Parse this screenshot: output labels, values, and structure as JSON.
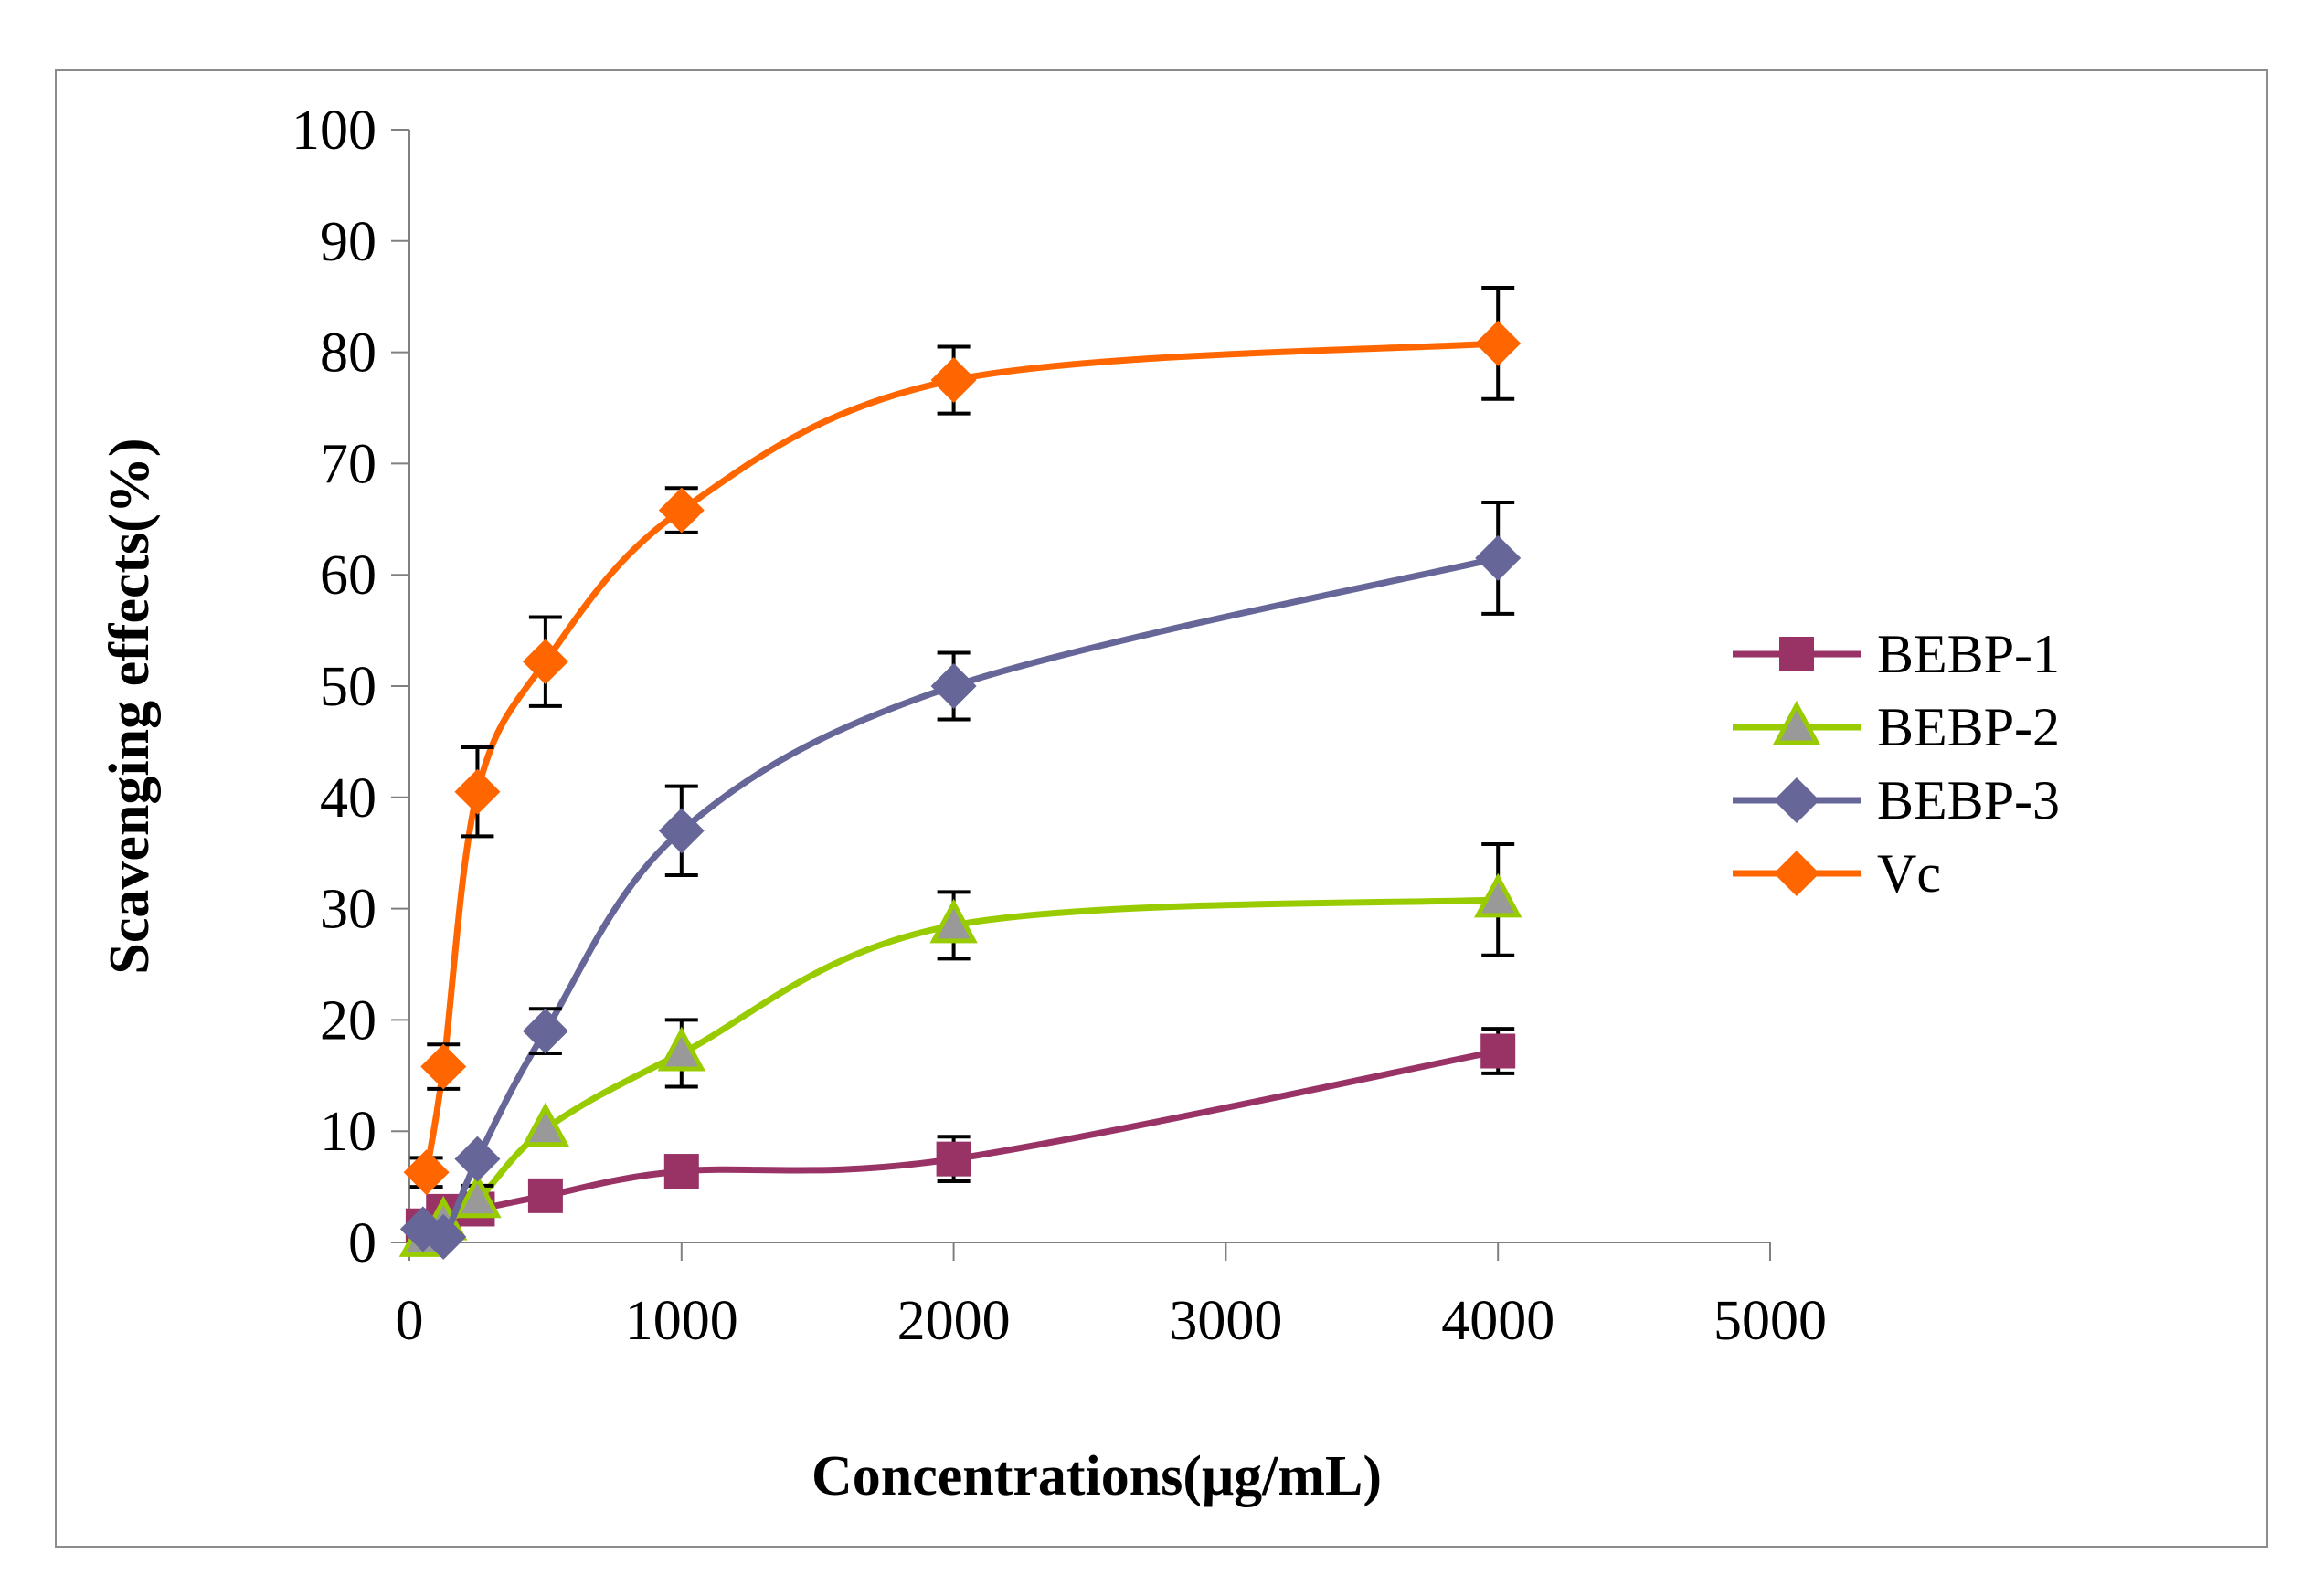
{
  "chart_data": {
    "type": "line",
    "title": "",
    "xlabel": "Concentrations(μg/mL)",
    "ylabel": "Scavenging effects(%)",
    "xlim": [
      0,
      5000
    ],
    "ylim": [
      0,
      100
    ],
    "xticks": [
      0,
      1000,
      2000,
      3000,
      4000,
      5000
    ],
    "yticks": [
      0,
      10,
      20,
      30,
      40,
      50,
      60,
      70,
      80,
      90,
      100
    ],
    "grid": false,
    "legend_position": "right",
    "series": [
      {
        "name": "BEBP-1",
        "color": "#993366",
        "marker": "square",
        "points": [
          {
            "x": 50,
            "y": 1.5,
            "err": null
          },
          {
            "x": 125,
            "y": 2.8,
            "err": null
          },
          {
            "x": 250,
            "y": 3.0,
            "err": null
          },
          {
            "x": 500,
            "y": 4.2,
            "err": null
          },
          {
            "x": 1000,
            "y": 6.4,
            "err": null
          },
          {
            "x": 2000,
            "y": 7.5,
            "err": 2.0
          },
          {
            "x": 4000,
            "y": 17.2,
            "err": 2.0
          }
        ]
      },
      {
        "name": "BEBP-2",
        "color": "#99CC00",
        "marker": "triangle",
        "points": [
          {
            "x": 50,
            "y": 0.3,
            "err": null
          },
          {
            "x": 125,
            "y": 1.8,
            "err": null
          },
          {
            "x": 250,
            "y": 3.8,
            "err": 1.3
          },
          {
            "x": 500,
            "y": 10.2,
            "err": null
          },
          {
            "x": 1000,
            "y": 17.0,
            "err": 3.0
          },
          {
            "x": 2000,
            "y": 28.5,
            "err": 3.0
          },
          {
            "x": 4000,
            "y": 30.8,
            "err": 5.0
          }
        ]
      },
      {
        "name": "BEBP-3",
        "color": "#666699",
        "marker": "diamond",
        "points": [
          {
            "x": 50,
            "y": 1.2,
            "err": null
          },
          {
            "x": 125,
            "y": 0.5,
            "err": null
          },
          {
            "x": 250,
            "y": 7.5,
            "err": null
          },
          {
            "x": 500,
            "y": 19.0,
            "err": 2.0
          },
          {
            "x": 1000,
            "y": 37.0,
            "err": 4.0
          },
          {
            "x": 2000,
            "y": 50.0,
            "err": 3.0
          },
          {
            "x": 4000,
            "y": 61.5,
            "err": 5.0
          }
        ]
      },
      {
        "name": "Vc",
        "color": "#FF6600",
        "marker": "diamond",
        "points": [
          {
            "x": 62.5,
            "y": 6.3,
            "err": 1.3
          },
          {
            "x": 125,
            "y": 15.8,
            "err": 2.0
          },
          {
            "x": 250,
            "y": 40.5,
            "err": 4.0
          },
          {
            "x": 500,
            "y": 52.2,
            "err": 4.0
          },
          {
            "x": 1000,
            "y": 65.8,
            "err": 2.0
          },
          {
            "x": 2000,
            "y": 77.5,
            "err": 3.0
          },
          {
            "x": 4000,
            "y": 80.8,
            "err": 5.0
          }
        ]
      }
    ]
  }
}
